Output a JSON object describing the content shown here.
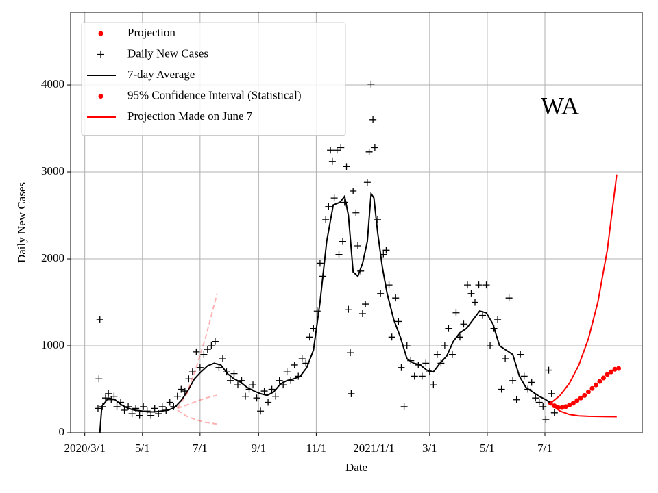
{
  "chart_data": {
    "type": "line",
    "xlabel": "Date",
    "ylabel": "Daily New Cases",
    "annotation": "WA",
    "grid": true,
    "legend": "upper left",
    "xlim": [
      "2020-02-15",
      "2021-10-12"
    ],
    "xticks": [
      {
        "value": "2020-03-01",
        "label": "2020/3/1"
      },
      {
        "value": "2020-05-01",
        "label": "5/1"
      },
      {
        "value": "2020-07-01",
        "label": "7/1"
      },
      {
        "value": "2020-09-01",
        "label": "9/1"
      },
      {
        "value": "2020-11-01",
        "label": "11/1"
      },
      {
        "value": "2021-01-01",
        "label": "2021/1/1"
      },
      {
        "value": "2021-03-01",
        "label": "3/1"
      },
      {
        "value": "2021-05-01",
        "label": "5/1"
      },
      {
        "value": "2021-07-01",
        "label": "7/1"
      }
    ],
    "ylim": [
      0,
      4835
    ],
    "yticks": [
      0,
      1000,
      2000,
      3000,
      4000
    ],
    "series": [
      {
        "name": "Projection",
        "color": "#ff0000",
        "marker": "dot",
        "x": [
          "2021-07-07",
          "2021-07-11",
          "2021-07-15",
          "2021-07-19",
          "2021-07-23",
          "2021-07-27",
          "2021-07-31",
          "2021-08-04",
          "2021-08-08",
          "2021-08-12",
          "2021-08-16",
          "2021-08-20",
          "2021-08-24",
          "2021-08-28",
          "2021-09-01",
          "2021-09-05",
          "2021-09-09",
          "2021-09-13",
          "2021-09-17"
        ],
        "values": [
          340,
          310,
          290,
          290,
          300,
          320,
          340,
          370,
          400,
          430,
          470,
          510,
          550,
          590,
          630,
          670,
          700,
          730,
          740
        ]
      },
      {
        "name": "Daily New Cases",
        "color": "#000000",
        "marker": "plus",
        "x": [
          "2020-03-15",
          "2020-03-16",
          "2020-03-17",
          "2020-03-20",
          "2020-03-23",
          "2020-03-26",
          "2020-03-29",
          "2020-04-01",
          "2020-04-04",
          "2020-04-08",
          "2020-04-12",
          "2020-04-16",
          "2020-04-20",
          "2020-04-24",
          "2020-04-28",
          "2020-05-02",
          "2020-05-06",
          "2020-05-10",
          "2020-05-14",
          "2020-05-18",
          "2020-05-22",
          "2020-05-26",
          "2020-05-30",
          "2020-06-03",
          "2020-06-07",
          "2020-06-11",
          "2020-06-15",
          "2020-06-19",
          "2020-06-23",
          "2020-06-27",
          "2020-07-01",
          "2020-07-05",
          "2020-07-09",
          "2020-07-13",
          "2020-07-17",
          "2020-07-21",
          "2020-07-25",
          "2020-07-29",
          "2020-08-02",
          "2020-08-06",
          "2020-08-10",
          "2020-08-14",
          "2020-08-18",
          "2020-08-22",
          "2020-08-26",
          "2020-08-30",
          "2020-09-03",
          "2020-09-07",
          "2020-09-11",
          "2020-09-15",
          "2020-09-19",
          "2020-09-23",
          "2020-09-27",
          "2020-10-01",
          "2020-10-05",
          "2020-10-09",
          "2020-10-13",
          "2020-10-17",
          "2020-10-21",
          "2020-10-25",
          "2020-10-29",
          "2020-11-02",
          "2020-11-05",
          "2020-11-08",
          "2020-11-11",
          "2020-11-14",
          "2020-11-16",
          "2020-11-18",
          "2020-11-20",
          "2020-11-23",
          "2020-11-25",
          "2020-11-27",
          "2020-11-29",
          "2020-12-01",
          "2020-12-03",
          "2020-12-05",
          "2020-12-07",
          "2020-12-08",
          "2020-12-10",
          "2020-12-13",
          "2020-12-15",
          "2020-12-18",
          "2020-12-20",
          "2020-12-23",
          "2020-12-25",
          "2020-12-27",
          "2020-12-29",
          "2020-12-31",
          "2021-01-02",
          "2021-01-05",
          "2021-01-08",
          "2021-01-11",
          "2021-01-14",
          "2021-01-17",
          "2021-01-20",
          "2021-01-24",
          "2021-01-27",
          "2021-01-30",
          "2021-02-02",
          "2021-02-05",
          "2021-02-09",
          "2021-02-13",
          "2021-02-17",
          "2021-02-21",
          "2021-02-25",
          "2021-03-01",
          "2021-03-05",
          "2021-03-09",
          "2021-03-13",
          "2021-03-17",
          "2021-03-21",
          "2021-03-25",
          "2021-03-29",
          "2021-04-02",
          "2021-04-06",
          "2021-04-10",
          "2021-04-14",
          "2021-04-18",
          "2021-04-22",
          "2021-04-26",
          "2021-04-30",
          "2021-05-04",
          "2021-05-08",
          "2021-05-12",
          "2021-05-16",
          "2021-05-20",
          "2021-05-24",
          "2021-05-28",
          "2021-06-01",
          "2021-06-05",
          "2021-06-09",
          "2021-06-13",
          "2021-06-17",
          "2021-06-21",
          "2021-06-25",
          "2021-06-29",
          "2021-07-02",
          "2021-07-05",
          "2021-07-08",
          "2021-07-11"
        ],
        "values": [
          280,
          620,
          1300,
          300,
          400,
          450,
          380,
          420,
          300,
          350,
          260,
          300,
          220,
          280,
          200,
          300,
          250,
          200,
          280,
          220,
          300,
          260,
          350,
          300,
          420,
          500,
          480,
          620,
          700,
          930,
          750,
          900,
          960,
          1000,
          1050,
          750,
          850,
          700,
          600,
          680,
          550,
          600,
          420,
          500,
          550,
          400,
          250,
          480,
          350,
          500,
          420,
          600,
          550,
          700,
          600,
          780,
          650,
          850,
          800,
          1100,
          1200,
          1400,
          1950,
          1800,
          2450,
          2600,
          3250,
          3120,
          2700,
          3250,
          2050,
          3280,
          2200,
          2650,
          3060,
          1420,
          920,
          450,
          2780,
          2530,
          2150,
          1860,
          1370,
          1480,
          2880,
          3230,
          4010,
          3600,
          3280,
          2450,
          1600,
          2050,
          2100,
          1700,
          1100,
          1550,
          1280,
          750,
          300,
          1000,
          830,
          650,
          780,
          650,
          800,
          700,
          550,
          900,
          800,
          1000,
          1200,
          900,
          1380,
          1100,
          1250,
          1700,
          1600,
          1500,
          1700,
          1350,
          1700,
          1000,
          1200,
          1300,
          500,
          850,
          1550,
          600,
          380,
          900,
          650,
          500,
          580,
          400,
          350,
          300,
          150,
          720,
          450,
          230
        ]
      },
      {
        "name": "7-day Average",
        "color": "#000000",
        "marker": "line",
        "x": [
          "2020-03-17",
          "2020-03-19",
          "2020-03-26",
          "2020-04-02",
          "2020-04-09",
          "2020-04-16",
          "2020-04-23",
          "2020-04-30",
          "2020-05-07",
          "2020-05-14",
          "2020-05-21",
          "2020-05-28",
          "2020-06-04",
          "2020-06-11",
          "2020-06-18",
          "2020-06-25",
          "2020-07-02",
          "2020-07-09",
          "2020-07-16",
          "2020-07-23",
          "2020-07-30",
          "2020-08-06",
          "2020-08-13",
          "2020-08-20",
          "2020-08-27",
          "2020-09-03",
          "2020-09-10",
          "2020-09-17",
          "2020-09-24",
          "2020-10-01",
          "2020-10-08",
          "2020-10-15",
          "2020-10-22",
          "2020-10-29",
          "2020-11-05",
          "2020-11-12",
          "2020-11-19",
          "2020-11-26",
          "2020-12-01",
          "2020-12-05",
          "2020-12-10",
          "2020-12-15",
          "2020-12-20",
          "2020-12-25",
          "2020-12-29",
          "2021-01-01",
          "2021-01-05",
          "2021-01-10",
          "2021-01-15",
          "2021-01-22",
          "2021-01-29",
          "2021-02-05",
          "2021-02-12",
          "2021-02-19",
          "2021-02-26",
          "2021-03-05",
          "2021-03-12",
          "2021-03-19",
          "2021-03-26",
          "2021-04-02",
          "2021-04-09",
          "2021-04-16",
          "2021-04-23",
          "2021-04-30",
          "2021-05-07",
          "2021-05-14",
          "2021-05-21",
          "2021-05-28",
          "2021-06-04",
          "2021-06-11",
          "2021-06-18",
          "2021-06-25",
          "2021-07-02",
          "2021-07-06"
        ],
        "values": [
          0,
          300,
          400,
          380,
          320,
          280,
          260,
          250,
          240,
          240,
          250,
          260,
          290,
          370,
          480,
          620,
          700,
          770,
          800,
          780,
          680,
          620,
          580,
          520,
          480,
          450,
          430,
          470,
          560,
          600,
          620,
          650,
          750,
          950,
          1500,
          2200,
          2620,
          2650,
          2720,
          2500,
          1850,
          1800,
          1950,
          2200,
          2750,
          2700,
          2300,
          1900,
          1600,
          1300,
          1100,
          850,
          800,
          780,
          720,
          700,
          800,
          880,
          1050,
          1150,
          1200,
          1300,
          1400,
          1380,
          1250,
          1000,
          950,
          900,
          650,
          520,
          470,
          420,
          380,
          350
        ]
      },
      {
        "name": "95% Confidence Interval (Statistical)",
        "color": "#ff0000",
        "marker": "dot",
        "x": [
          "2021-07-07",
          "2021-07-17",
          "2021-07-27",
          "2021-08-06",
          "2021-08-16",
          "2021-08-26",
          "2021-09-05",
          "2021-09-15"
        ],
        "values": [
          340,
          430,
          570,
          780,
          1080,
          1500,
          2100,
          2970
        ],
        "lower": [
          330,
          250,
          210,
          195,
          190,
          188,
          186,
          185
        ]
      },
      {
        "name": "Projection Made on June 7",
        "color": "#ff0000",
        "marker": "line",
        "line_style": "dashed",
        "alpha": 0.3,
        "x": [
          "2020-06-07",
          "2020-06-17",
          "2020-06-27",
          "2020-07-07",
          "2020-07-19"
        ],
        "values": [
          280,
          320,
          360,
          400,
          430
        ],
        "upper": [
          280,
          450,
          750,
          1100,
          1600
        ],
        "lower": [
          260,
          190,
          150,
          120,
          100
        ]
      }
    ]
  }
}
